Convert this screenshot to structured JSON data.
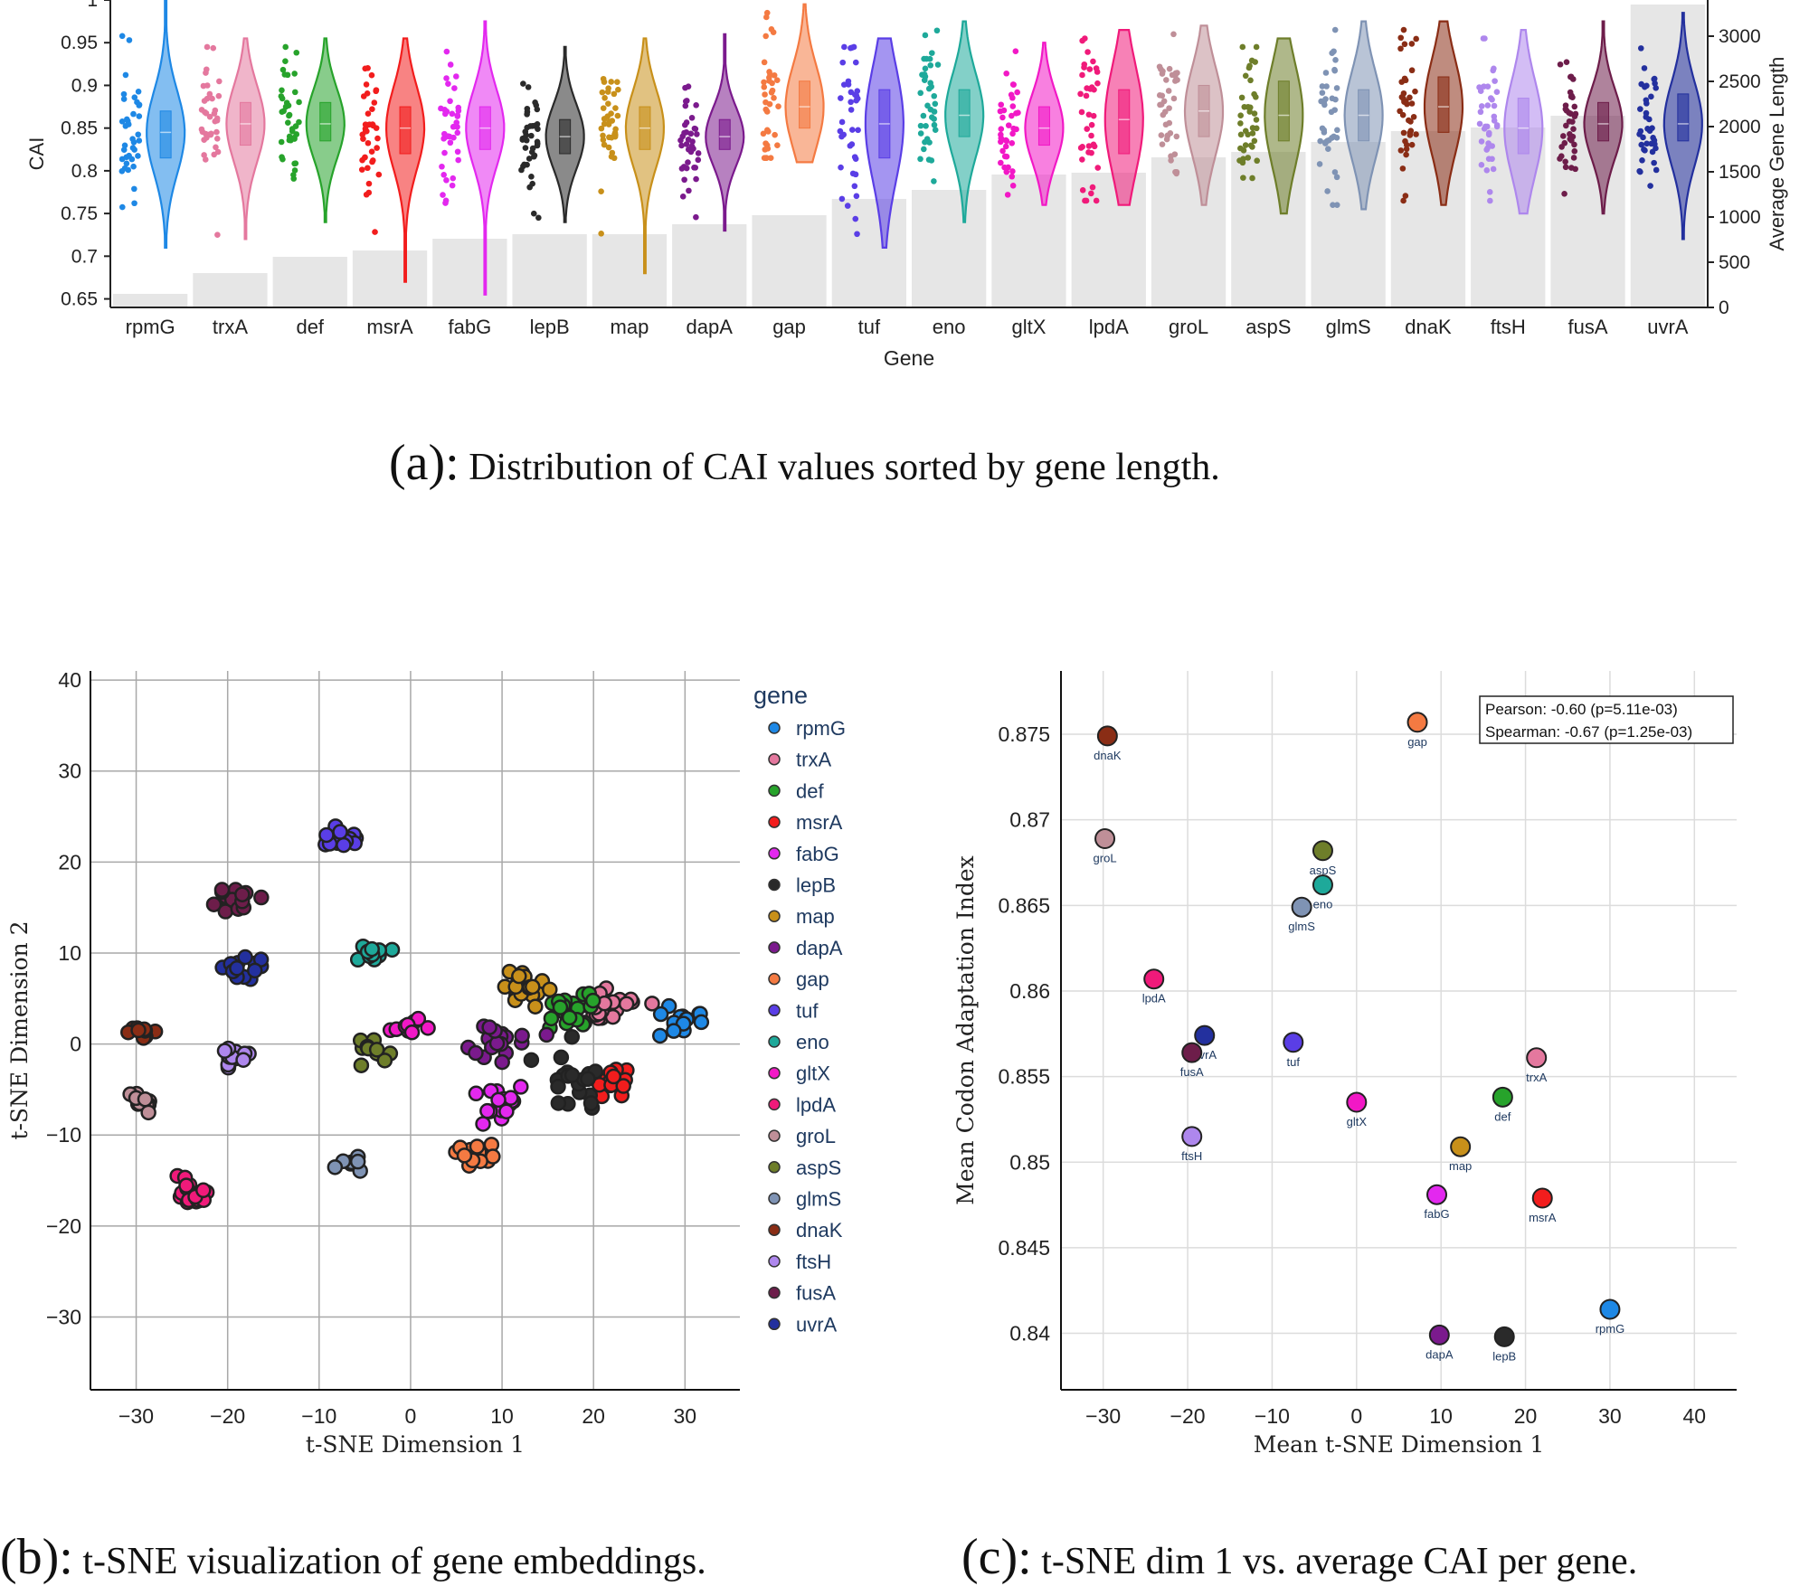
{
  "captions": {
    "a_label": "(a):",
    "a_text": "Distribution of CAI values sorted by gene length.",
    "b_label": "(b):",
    "b_text": "t-SNE visualization of gene embeddings.",
    "c_label": "(c):",
    "c_text": "t-SNE dim 1 vs. average CAI per gene."
  },
  "chart_data": [
    {
      "type": "violin",
      "id": "a",
      "xlabel": "Gene",
      "ylabel": "CAI",
      "y2label": "Average Gene Length",
      "ylim": [
        0.64,
        1.0
      ],
      "y2lim": [
        0,
        3400
      ],
      "yticks": [
        "0.65",
        "0.7",
        "0.75",
        "0.8",
        "0.85",
        "0.9",
        "0.95",
        "1"
      ],
      "y2ticks": [
        "0",
        "500",
        "1000",
        "1500",
        "2000",
        "2500",
        "3000"
      ],
      "categories": [
        "rpmG",
        "trxA",
        "def",
        "msrA",
        "fabG",
        "lepB",
        "map",
        "dapA",
        "gap",
        "tuf",
        "eno",
        "gltX",
        "lpdA",
        "groL",
        "aspS",
        "glmS",
        "dnaK",
        "ftsH",
        "fusA",
        "uvrA"
      ],
      "avg_gene_length": [
        150,
        380,
        560,
        630,
        760,
        810,
        810,
        920,
        1020,
        1200,
        1300,
        1470,
        1490,
        1660,
        1720,
        1830,
        1950,
        1990,
        2120,
        3350
      ],
      "cai_min": [
        0.71,
        0.72,
        0.74,
        0.67,
        0.655,
        0.74,
        0.68,
        0.73,
        0.81,
        0.71,
        0.74,
        0.76,
        0.76,
        0.76,
        0.75,
        0.755,
        0.76,
        0.75,
        0.75,
        0.72
      ],
      "cai_q1": [
        0.815,
        0.83,
        0.835,
        0.82,
        0.825,
        0.82,
        0.825,
        0.825,
        0.85,
        0.815,
        0.84,
        0.83,
        0.82,
        0.84,
        0.835,
        0.835,
        0.845,
        0.82,
        0.835,
        0.835
      ],
      "cai_median": [
        0.845,
        0.855,
        0.855,
        0.85,
        0.85,
        0.84,
        0.85,
        0.84,
        0.875,
        0.855,
        0.865,
        0.85,
        0.86,
        0.87,
        0.865,
        0.865,
        0.875,
        0.85,
        0.855,
        0.855
      ],
      "cai_q3": [
        0.87,
        0.88,
        0.88,
        0.875,
        0.875,
        0.86,
        0.875,
        0.86,
        0.905,
        0.895,
        0.895,
        0.875,
        0.895,
        0.9,
        0.905,
        0.895,
        0.91,
        0.885,
        0.88,
        0.89
      ],
      "cai_max": [
        1.0,
        0.955,
        0.955,
        0.955,
        0.975,
        0.945,
        0.955,
        0.96,
        0.995,
        0.955,
        0.975,
        0.95,
        0.965,
        0.97,
        0.955,
        0.975,
        0.975,
        0.965,
        0.975,
        0.985
      ],
      "colors": [
        "#1e88e5",
        "#e4789e",
        "#27a32b",
        "#f21d1d",
        "#e328ef",
        "#2a2a2a",
        "#c8901a",
        "#7b1a8d",
        "#f47a42",
        "#5a3ee6",
        "#1ea99a",
        "#f218c6",
        "#f01a7a",
        "#bf8f98",
        "#6e7e2a",
        "#7f93b4",
        "#8a2d15",
        "#ae87ed",
        "#6d1d4a",
        "#23309e"
      ]
    },
    {
      "type": "scatter",
      "id": "b",
      "xlabel": "t-SNE Dimension 1",
      "ylabel": "t-SNE Dimension 2",
      "xlim": [
        -35,
        36
      ],
      "ylim": [
        -38,
        41
      ],
      "xticks": [
        -30,
        -20,
        -10,
        0,
        10,
        20,
        30
      ],
      "yticks": [
        -30,
        -20,
        -10,
        0,
        10,
        20,
        30,
        40
      ],
      "legend_title": "gene",
      "legend_position": "right",
      "clusters": [
        {
          "name": "rpmG",
          "x": 29.5,
          "y": 2.5,
          "spread": 2.0,
          "n": 16
        },
        {
          "name": "trxA",
          "x": 22.0,
          "y": 4.5,
          "spread": 2.5,
          "n": 22
        },
        {
          "name": "def",
          "x": 17.5,
          "y": 4.0,
          "spread": 2.8,
          "n": 22
        },
        {
          "name": "msrA",
          "x": 22.5,
          "y": -4.0,
          "spread": 3.0,
          "n": 16
        },
        {
          "name": "fabG",
          "x": 9.5,
          "y": -6.5,
          "spread": 2.5,
          "n": 18
        },
        {
          "name": "lepB",
          "x": 17.5,
          "y": -4.5,
          "spread": 4.5,
          "n": 20
        },
        {
          "name": "map",
          "x": 12.0,
          "y": 6.0,
          "spread": 2.5,
          "n": 20
        },
        {
          "name": "dapA",
          "x": 10.0,
          "y": 0.0,
          "spread": 3.0,
          "n": 18
        },
        {
          "name": "gap",
          "x": 7.0,
          "y": -12.0,
          "spread": 1.8,
          "n": 14
        },
        {
          "name": "tuf",
          "x": -7.5,
          "y": 22.5,
          "spread": 1.8,
          "n": 14
        },
        {
          "name": "eno",
          "x": -4.0,
          "y": 10.0,
          "spread": 1.5,
          "n": 10
        },
        {
          "name": "gltX",
          "x": 0.0,
          "y": 2.0,
          "spread": 1.5,
          "n": 10
        },
        {
          "name": "lpdA",
          "x": -24.0,
          "y": -16.5,
          "spread": 2.0,
          "n": 20
        },
        {
          "name": "groL",
          "x": -29.5,
          "y": -6.5,
          "spread": 1.5,
          "n": 14
        },
        {
          "name": "aspS",
          "x": -4.0,
          "y": -1.0,
          "spread": 2.2,
          "n": 12
        },
        {
          "name": "glmS",
          "x": -6.5,
          "y": -13.0,
          "spread": 1.2,
          "n": 8
        },
        {
          "name": "dnaK",
          "x": -29.5,
          "y": 1.5,
          "spread": 1.5,
          "n": 10
        },
        {
          "name": "ftsH",
          "x": -19.5,
          "y": -1.5,
          "spread": 1.5,
          "n": 12
        },
        {
          "name": "fusA",
          "x": -19.5,
          "y": 16.0,
          "spread": 2.0,
          "n": 16
        },
        {
          "name": "uvrA",
          "x": -18.0,
          "y": 8.5,
          "spread": 2.0,
          "n": 14
        }
      ]
    },
    {
      "type": "scatter",
      "id": "c",
      "xlabel": "Mean t-SNE Dimension 1",
      "ylabel": "Mean Codon Adaptation Index",
      "xlim": [
        -35,
        45
      ],
      "ylim": [
        0.8367,
        0.8787
      ],
      "xticks": [
        -30,
        -20,
        -10,
        0,
        10,
        20,
        30,
        40
      ],
      "yticks": [
        0.84,
        0.845,
        0.85,
        0.855,
        0.86,
        0.865,
        0.87,
        0.875
      ],
      "ytick_labels": [
        "0.84",
        "0.845",
        "0.85",
        "0.855",
        "0.86",
        "0.865",
        "0.87",
        "0.875"
      ],
      "annotation": [
        "Pearson:  -0.60 (p=5.11e-03)",
        "Spearman: -0.67 (p=1.25e-03)"
      ],
      "points": [
        {
          "name": "dnaK",
          "x": -29.5,
          "y": 0.8749
        },
        {
          "name": "gap",
          "x": 7.2,
          "y": 0.8757
        },
        {
          "name": "groL",
          "x": -29.8,
          "y": 0.8689
        },
        {
          "name": "aspS",
          "x": -4.0,
          "y": 0.8682
        },
        {
          "name": "eno",
          "x": -4.0,
          "y": 0.8662
        },
        {
          "name": "glmS",
          "x": -6.5,
          "y": 0.8649
        },
        {
          "name": "lpdA",
          "x": -24.0,
          "y": 0.8607
        },
        {
          "name": "uvrA",
          "x": -18.0,
          "y": 0.8574
        },
        {
          "name": "fusA",
          "x": -19.5,
          "y": 0.8564
        },
        {
          "name": "tuf",
          "x": -7.5,
          "y": 0.857
        },
        {
          "name": "trxA",
          "x": 21.3,
          "y": 0.8561
        },
        {
          "name": "def",
          "x": 17.3,
          "y": 0.8538
        },
        {
          "name": "gltX",
          "x": 0.0,
          "y": 0.8535
        },
        {
          "name": "ftsH",
          "x": -19.5,
          "y": 0.8515
        },
        {
          "name": "map",
          "x": 12.3,
          "y": 0.8509
        },
        {
          "name": "fabG",
          "x": 9.5,
          "y": 0.8481
        },
        {
          "name": "msrA",
          "x": 22.0,
          "y": 0.8479
        },
        {
          "name": "rpmG",
          "x": 30.0,
          "y": 0.8414
        },
        {
          "name": "dapA",
          "x": 9.8,
          "y": 0.8399
        },
        {
          "name": "lepB",
          "x": 17.5,
          "y": 0.8398
        }
      ]
    }
  ]
}
